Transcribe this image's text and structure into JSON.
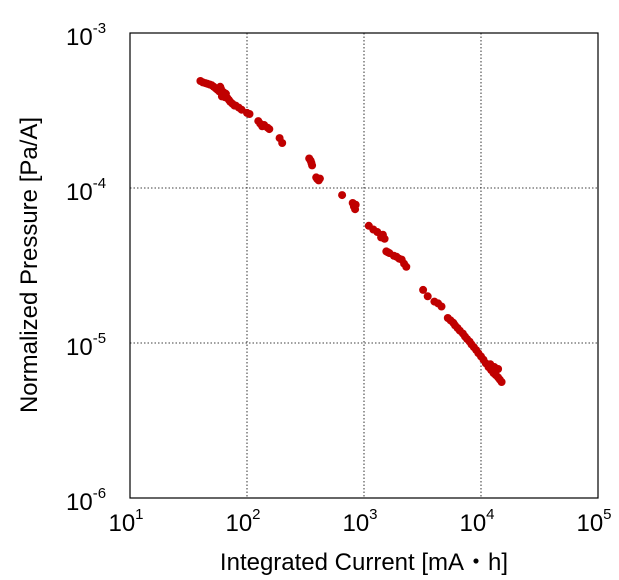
{
  "chart_data": {
    "type": "scatter",
    "xlabel": "Integrated Current [mA・h]",
    "ylabel": "Normalized Pressure [Pa/A]",
    "x_scale": "log",
    "y_scale": "log",
    "xlim": [
      10,
      100000
    ],
    "ylim": [
      1e-06,
      0.001
    ],
    "grid": true,
    "marker_color": "#c00000",
    "x_ticks": [
      {
        "base": "10",
        "exp": "1"
      },
      {
        "base": "10",
        "exp": "2"
      },
      {
        "base": "10",
        "exp": "3"
      },
      {
        "base": "10",
        "exp": "4"
      },
      {
        "base": "10",
        "exp": "5"
      }
    ],
    "y_ticks": [
      {
        "base": "10",
        "exp": "-6"
      },
      {
        "base": "10",
        "exp": "-5"
      },
      {
        "base": "10",
        "exp": "-4"
      },
      {
        "base": "10",
        "exp": "-3"
      }
    ],
    "series": [
      {
        "points": [
          [
            40,
            0.00049
          ],
          [
            42,
            0.00048
          ],
          [
            44,
            0.000475
          ],
          [
            46,
            0.00047
          ],
          [
            48,
            0.000465
          ],
          [
            50,
            0.00046
          ],
          [
            52,
            0.00045
          ],
          [
            54,
            0.00044
          ],
          [
            56,
            0.00043
          ],
          [
            58,
            0.00042
          ],
          [
            59,
            0.00045
          ],
          [
            60,
            0.000435
          ],
          [
            61,
            0.00039
          ],
          [
            62,
            0.00041
          ],
          [
            63,
            0.000415
          ],
          [
            64,
            0.000395
          ],
          [
            65,
            0.000385
          ],
          [
            66,
            0.000405
          ],
          [
            68,
            0.00038
          ],
          [
            70,
            0.00037
          ],
          [
            72,
            0.00036
          ],
          [
            75,
            0.00035
          ],
          [
            78,
            0.00034
          ],
          [
            80,
            0.00034
          ],
          [
            85,
            0.00033
          ],
          [
            90,
            0.00032
          ],
          [
            100,
            0.000305
          ],
          [
            105,
            0.0003
          ],
          [
            125,
            0.00027
          ],
          [
            130,
            0.00026
          ],
          [
            135,
            0.00025
          ],
          [
            140,
            0.000255
          ],
          [
            150,
            0.000245
          ],
          [
            155,
            0.00024
          ],
          [
            190,
            0.00021
          ],
          [
            200,
            0.000195
          ],
          [
            340,
            0.000155
          ],
          [
            350,
            0.00015
          ],
          [
            355,
            0.000145
          ],
          [
            360,
            0.00014
          ],
          [
            390,
            0.000117
          ],
          [
            400,
            0.000114
          ],
          [
            410,
            0.000112
          ],
          [
            420,
            0.000115
          ],
          [
            650,
            9e-05
          ],
          [
            800,
            8e-05
          ],
          [
            820,
            7.6e-05
          ],
          [
            840,
            7.3e-05
          ],
          [
            850,
            7.8e-05
          ],
          [
            1100,
            5.7e-05
          ],
          [
            1200,
            5.4e-05
          ],
          [
            1300,
            5.2e-05
          ],
          [
            1400,
            4.8e-05
          ],
          [
            1450,
            5e-05
          ],
          [
            1500,
            4.7e-05
          ],
          [
            1550,
            3.9e-05
          ],
          [
            1600,
            3.85e-05
          ],
          [
            1650,
            3.8e-05
          ],
          [
            1800,
            3.65e-05
          ],
          [
            1900,
            3.6e-05
          ],
          [
            2000,
            3.5e-05
          ],
          [
            2100,
            3.45e-05
          ],
          [
            2200,
            3.25e-05
          ],
          [
            2300,
            3.1e-05
          ],
          [
            3200,
            2.2e-05
          ],
          [
            3500,
            2e-05
          ],
          [
            4000,
            1.85e-05
          ],
          [
            4300,
            1.8e-05
          ],
          [
            4600,
            1.72e-05
          ],
          [
            5200,
            1.45e-05
          ],
          [
            5500,
            1.4e-05
          ],
          [
            5800,
            1.35e-05
          ],
          [
            6000,
            1.3e-05
          ],
          [
            6300,
            1.25e-05
          ],
          [
            6600,
            1.2e-05
          ],
          [
            7000,
            1.15e-05
          ],
          [
            7300,
            1.1e-05
          ],
          [
            7600,
            1.06e-05
          ],
          [
            8000,
            1.02e-05
          ],
          [
            8300,
            9.8e-06
          ],
          [
            8700,
            9.4e-06
          ],
          [
            9100,
            9e-06
          ],
          [
            9500,
            8.6e-06
          ],
          [
            10000,
            8.2e-06
          ],
          [
            10500,
            7.8e-06
          ],
          [
            11000,
            7.4e-06
          ],
          [
            11600,
            7e-06
          ],
          [
            12200,
            6.7e-06
          ],
          [
            12800,
            6.4e-06
          ],
          [
            13400,
            6.2e-06
          ],
          [
            14000,
            6e-06
          ],
          [
            14500,
            5.8e-06
          ],
          [
            15000,
            5.6e-06
          ],
          [
            13000,
            7e-06
          ],
          [
            14000,
            6.8e-06
          ],
          [
            12000,
            7.3e-06
          ]
        ]
      }
    ]
  }
}
